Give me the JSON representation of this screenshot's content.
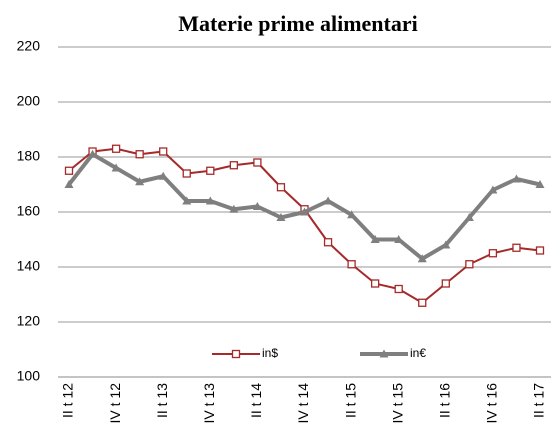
{
  "chart_data": {
    "type": "line",
    "title": "Materie prime alimentari",
    "categories": [
      "II t 12",
      null,
      "IV t 12",
      null,
      "II t 13",
      null,
      "IV t 13",
      null,
      "II t 14",
      null,
      "IV t 14",
      null,
      "II t 15",
      null,
      "IV t 15",
      null,
      "II t 16",
      null,
      "IV t 16",
      null,
      "II t 17"
    ],
    "series": [
      {
        "name": "in$",
        "color": "#a52a2a",
        "values": [
          175,
          182,
          183,
          181,
          182,
          174,
          175,
          177,
          178,
          169,
          161,
          149,
          141,
          134,
          132,
          127,
          134,
          141,
          145,
          147,
          146
        ]
      },
      {
        "name": "in€",
        "color": "#7f7f7f",
        "values": [
          170,
          181,
          176,
          171,
          173,
          164,
          164,
          161,
          162,
          158,
          160,
          164,
          159,
          150,
          150,
          143,
          148,
          158,
          168,
          172,
          170
        ]
      }
    ],
    "ylim": [
      100,
      220
    ],
    "yticks": [
      100,
      120,
      140,
      160,
      180,
      200,
      220
    ],
    "grid": true,
    "legend": "bottom"
  }
}
